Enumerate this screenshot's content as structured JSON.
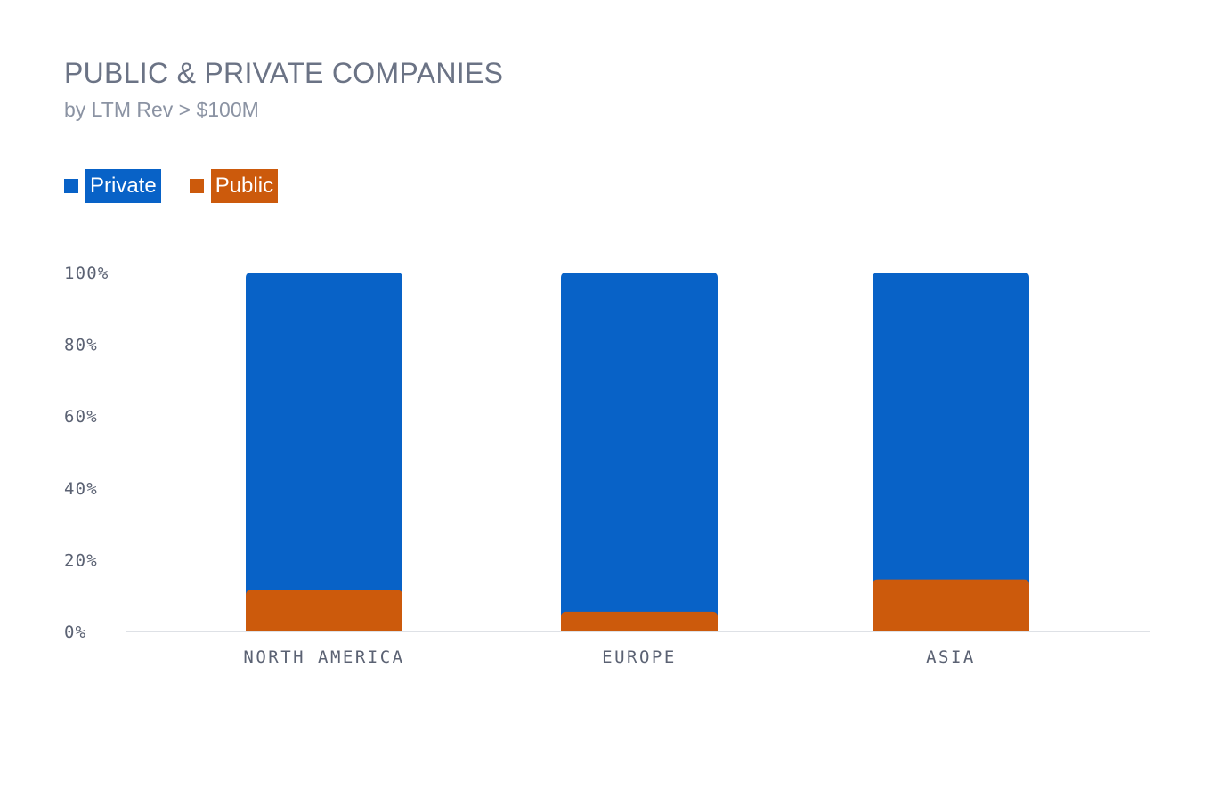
{
  "title": "PUBLIC & PRIVATE COMPANIES",
  "subtitle": "by LTM Rev > $100M",
  "colors": {
    "private": "#0862c7",
    "public": "#cc5a0c",
    "axis": "#d4d7dd"
  },
  "legend": [
    {
      "label": "Private",
      "color_key": "private"
    },
    {
      "label": "Public",
      "color_key": "public"
    }
  ],
  "chart_data": {
    "type": "bar",
    "stacked": true,
    "normalized": true,
    "categories": [
      "NORTH AMERICA",
      "EUROPE",
      "ASIA"
    ],
    "series": [
      {
        "name": "Public",
        "values": [
          11.5,
          5.5,
          14.5
        ]
      },
      {
        "name": "Private",
        "values": [
          88.5,
          94.5,
          85.5
        ]
      }
    ],
    "yticks": [
      "0%",
      "20%",
      "40%",
      "60%",
      "80%",
      "100%"
    ],
    "ylim": [
      0,
      100
    ],
    "grid": false,
    "legend_position": "top-left"
  }
}
